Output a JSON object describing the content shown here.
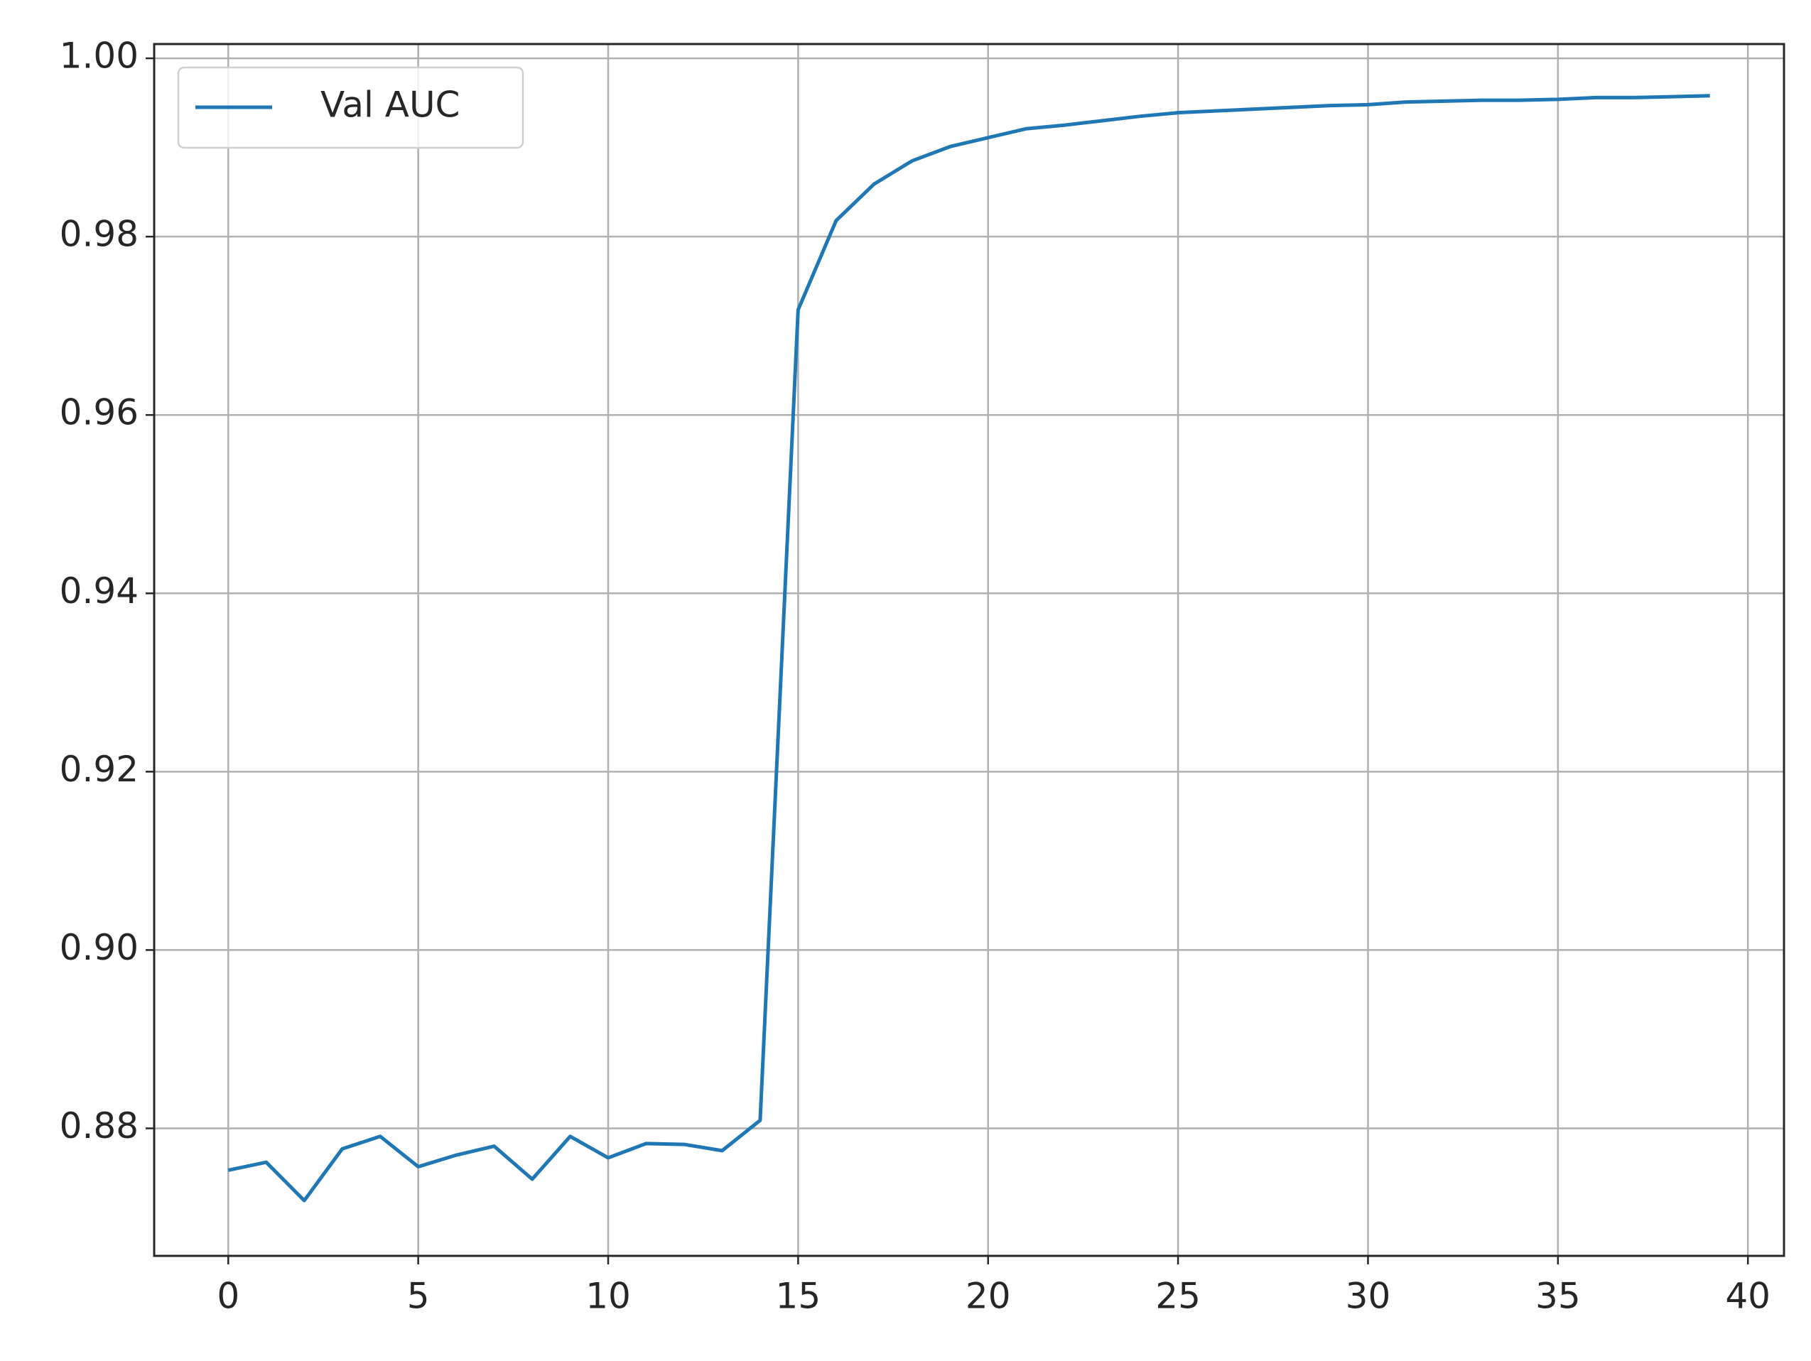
{
  "chart_data": {
    "type": "line",
    "x": [
      0,
      1,
      2,
      3,
      4,
      5,
      6,
      7,
      8,
      9,
      10,
      11,
      12,
      13,
      14,
      15,
      16,
      17,
      18,
      19,
      20,
      21,
      22,
      23,
      24,
      25,
      26,
      27,
      28,
      29,
      30,
      31,
      32,
      33,
      34,
      35,
      36,
      37,
      38,
      39
    ],
    "series": [
      {
        "name": "Val AUC",
        "color": "#1f77b4",
        "values": [
          0.8753,
          0.8762,
          0.8719,
          0.8777,
          0.8791,
          0.8757,
          0.877,
          0.878,
          0.8743,
          0.8791,
          0.8767,
          0.8783,
          0.8782,
          0.8775,
          0.8809,
          0.9718,
          0.9818,
          0.9859,
          0.9885,
          0.9901,
          0.9911,
          0.9921,
          0.9925,
          0.993,
          0.9935,
          0.9939,
          0.9941,
          0.9943,
          0.9945,
          0.9947,
          0.9948,
          0.9951,
          0.9952,
          0.9953,
          0.9953,
          0.9954,
          0.9956,
          0.9956,
          0.9957,
          0.9958
        ]
      }
    ],
    "xlim": [
      -1.95,
      40.95
    ],
    "xticks": [
      0,
      5,
      10,
      15,
      20,
      25,
      30,
      35,
      40
    ],
    "ylim": [
      0.8657,
      1.0016
    ],
    "yticks": [
      0.88,
      {
        "value": 0.9,
        "label": "0.90"
      },
      0.92,
      0.94,
      0.96,
      0.98,
      {
        "value": 1,
        "label": "1.00"
      }
    ],
    "grid": true,
    "legend": "upper left"
  }
}
